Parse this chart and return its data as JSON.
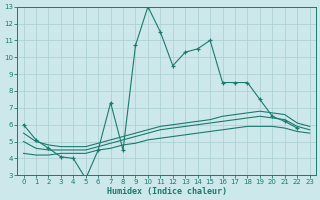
{
  "xlabel": "Humidex (Indice chaleur)",
  "x": [
    0,
    1,
    2,
    3,
    4,
    5,
    6,
    7,
    8,
    9,
    10,
    11,
    12,
    13,
    14,
    15,
    16,
    17,
    18,
    19,
    20,
    21,
    22,
    23
  ],
  "main_line": [
    6.0,
    5.1,
    4.6,
    4.1,
    4.0,
    2.8,
    4.5,
    7.3,
    4.5,
    10.7,
    13.0,
    11.5,
    9.5,
    10.3,
    10.5,
    11.0,
    8.5,
    8.5,
    8.5,
    7.5,
    6.5,
    6.2,
    5.8,
    null
  ],
  "line_a": [
    5.5,
    5.0,
    4.8,
    4.7,
    4.7,
    4.7,
    4.9,
    5.1,
    5.3,
    5.5,
    5.7,
    5.9,
    6.0,
    6.1,
    6.2,
    6.3,
    6.5,
    6.6,
    6.7,
    6.8,
    6.7,
    6.6,
    6.1,
    5.9
  ],
  "line_b": [
    5.0,
    4.6,
    4.5,
    4.5,
    4.5,
    4.5,
    4.7,
    4.9,
    5.1,
    5.3,
    5.5,
    5.7,
    5.8,
    5.9,
    6.0,
    6.1,
    6.2,
    6.3,
    6.4,
    6.5,
    6.4,
    6.3,
    5.9,
    5.7
  ],
  "line_c": [
    4.3,
    4.2,
    4.2,
    4.3,
    4.3,
    4.3,
    4.5,
    4.6,
    4.8,
    4.9,
    5.1,
    5.2,
    5.3,
    5.4,
    5.5,
    5.6,
    5.7,
    5.8,
    5.9,
    5.9,
    5.9,
    5.8,
    5.6,
    5.5
  ],
  "color": "#1b7a6e",
  "bg_color": "#cde8eb",
  "grid_color": "#aacdd1",
  "ylim": [
    3,
    13
  ],
  "xlim": [
    -0.5,
    23.5
  ]
}
